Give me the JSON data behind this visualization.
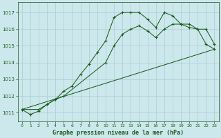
{
  "background_color": "#cde8ed",
  "grid_color": "#b0d0d8",
  "line_color": "#1a5c1a",
  "spine_color": "#336633",
  "title": "Graphe pression niveau de la mer (hPa)",
  "xlim": [
    -0.5,
    23.5
  ],
  "ylim": [
    1010.5,
    1017.6
  ],
  "yticks": [
    1011,
    1012,
    1013,
    1014,
    1015,
    1016,
    1017
  ],
  "xticks": [
    0,
    1,
    2,
    3,
    4,
    5,
    6,
    7,
    8,
    9,
    10,
    11,
    12,
    13,
    14,
    15,
    16,
    17,
    18,
    19,
    20,
    21,
    22,
    23
  ],
  "series1_x": [
    0,
    1,
    2,
    3,
    4,
    5,
    6,
    7,
    8,
    9,
    10,
    11,
    12,
    13,
    14,
    15,
    16,
    17,
    18,
    19,
    20,
    21,
    22,
    23
  ],
  "series1_y": [
    1011.2,
    1010.9,
    1011.1,
    1011.5,
    1011.8,
    1012.3,
    1012.6,
    1013.3,
    1013.9,
    1014.6,
    1015.3,
    1016.7,
    1017.0,
    1017.0,
    1017.0,
    1016.6,
    1016.1,
    1017.0,
    1016.8,
    1016.3,
    1016.3,
    1016.0,
    1015.1,
    1014.8
  ],
  "series2_x": [
    0,
    2,
    3,
    4,
    5,
    10,
    11,
    12,
    13,
    14,
    15,
    16,
    17,
    18,
    19,
    20,
    21,
    22,
    23
  ],
  "series2_y": [
    1011.2,
    1011.2,
    1011.5,
    1011.8,
    1012.0,
    1014.0,
    1015.0,
    1015.7,
    1016.0,
    1016.2,
    1015.9,
    1015.5,
    1016.0,
    1016.3,
    1016.3,
    1016.1,
    1016.0,
    1016.0,
    1015.1
  ],
  "series3_x": [
    0,
    23
  ],
  "series3_y": [
    1011.2,
    1014.8
  ]
}
